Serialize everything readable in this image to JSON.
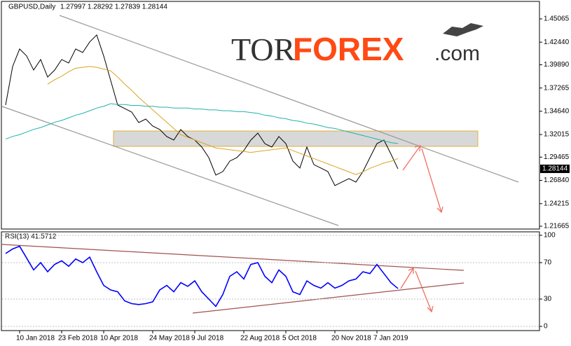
{
  "watermark": {
    "prefix": "TOR",
    "brand": "FOREX",
    "suffix": ".com"
  },
  "chart_data": [
    {
      "type": "line",
      "title": "GBPUSD,Daily",
      "subtitle": "1.27997 1.28292 1.27839 1.28144",
      "last_price": 1.28144,
      "series": [
        {
          "color": "#000000",
          "values": [
            1.3534,
            1.3969,
            1.4167,
            1.4088,
            1.3929,
            1.4048,
            1.385,
            1.3929,
            1.4048,
            1.4009,
            1.4167,
            1.4127,
            1.4246,
            1.4325,
            1.4088,
            1.3811,
            1.3534,
            1.3495,
            1.3455,
            1.3337,
            1.3376,
            1.3297,
            1.3258,
            1.3179,
            1.3139,
            1.3258,
            1.3179,
            1.3139,
            1.306,
            1.2941,
            1.2744,
            1.2783,
            1.2902,
            1.2941,
            1.3021,
            1.3139,
            1.3218,
            1.3099,
            1.306,
            1.3179,
            1.3099,
            1.2902,
            1.2823,
            1.306,
            1.2862,
            1.2823,
            1.2783,
            1.2625,
            1.2665,
            1.2704,
            1.2665,
            1.2783,
            1.2941,
            1.3099,
            1.3139,
            1.2981,
            1.2814
          ]
        },
        {
          "color": "#daa520",
          "values": [
            null,
            null,
            null,
            null,
            null,
            null,
            1.377,
            1.382,
            1.386,
            1.391,
            1.395,
            1.396,
            1.397,
            1.396,
            1.394,
            1.392,
            1.385,
            1.377,
            1.37,
            1.362,
            1.355,
            1.348,
            1.341,
            1.334,
            1.327,
            1.32,
            1.317,
            1.314,
            1.311,
            1.308,
            1.305,
            1.304,
            1.303,
            1.302,
            1.301,
            1.3,
            1.301,
            1.302,
            1.303,
            1.304,
            1.305,
            1.302,
            1.299,
            1.296,
            1.293,
            1.29,
            1.287,
            1.284,
            1.281,
            1.278,
            1.275,
            1.278,
            1.282,
            1.285,
            1.288,
            1.29,
            1.293
          ]
        },
        {
          "color": "#20b2aa",
          "values": [
            1.315,
            1.318,
            1.32,
            1.323,
            1.326,
            1.328,
            1.331,
            1.334,
            1.336,
            1.339,
            1.342,
            1.344,
            1.347,
            1.35,
            1.352,
            1.355,
            1.354,
            1.354,
            1.353,
            1.353,
            1.352,
            1.352,
            1.351,
            1.351,
            1.35,
            1.35,
            1.35,
            1.349,
            1.349,
            1.348,
            1.348,
            1.347,
            1.347,
            1.346,
            1.346,
            1.345,
            1.344,
            1.342,
            1.341,
            1.339,
            1.338,
            1.336,
            1.335,
            1.333,
            1.332,
            1.33,
            1.328,
            1.327,
            1.325,
            1.323,
            1.321,
            1.319,
            1.317,
            1.315,
            1.313,
            1.311,
            1.31
          ]
        }
      ],
      "ylim": [
        1.2135,
        1.4696
      ],
      "yticks": [
        1.45065,
        {
          "value": 1.4244,
          "label": "1.42440"
        },
        {
          "value": 1.3989,
          "label": "1.39890"
        },
        1.37265,
        {
          "value": 1.3464,
          "label": "1.34640"
        },
        1.32015,
        1.29465,
        {
          "value": 1.2684,
          "label": "1.26840"
        },
        1.24215,
        1.21665
      ]
    },
    {
      "type": "line",
      "title": "RSI(13) 41.5712",
      "categories": [
        null,
        null,
        "10 Jan 2018",
        null,
        null,
        null,
        null,
        null,
        "23 Feb 2018",
        null,
        null,
        null,
        null,
        null,
        "10 Apr 2018",
        null,
        null,
        null,
        null,
        null,
        null,
        "24 May 2018",
        null,
        null,
        null,
        null,
        null,
        "9 Jul 2018",
        null,
        null,
        null,
        null,
        null,
        null,
        "22 Aug 2018",
        null,
        null,
        null,
        null,
        null,
        "5 Oct 2018",
        null,
        null,
        null,
        null,
        null,
        null,
        "20 Nov 2018",
        null,
        null,
        null,
        null,
        null,
        "7 Jan 2019",
        null,
        null,
        null
      ],
      "series": [
        {
          "color": "#0000ff",
          "values": [
            80,
            85,
            88,
            75,
            62,
            70,
            60,
            68,
            72,
            66,
            74,
            70,
            76,
            60,
            45,
            40,
            38,
            28,
            25,
            24,
            25,
            27,
            40,
            45,
            38,
            48,
            44,
            50,
            38,
            30,
            22,
            35,
            55,
            60,
            52,
            68,
            70,
            55,
            48,
            62,
            55,
            38,
            35,
            50,
            45,
            42,
            48,
            42,
            45,
            50,
            52,
            60,
            58,
            68,
            58,
            48,
            41.57
          ]
        }
      ],
      "ylim": [
        -4.6,
        103.8
      ],
      "yticks": [
        100,
        70,
        30,
        0
      ]
    }
  ]
}
